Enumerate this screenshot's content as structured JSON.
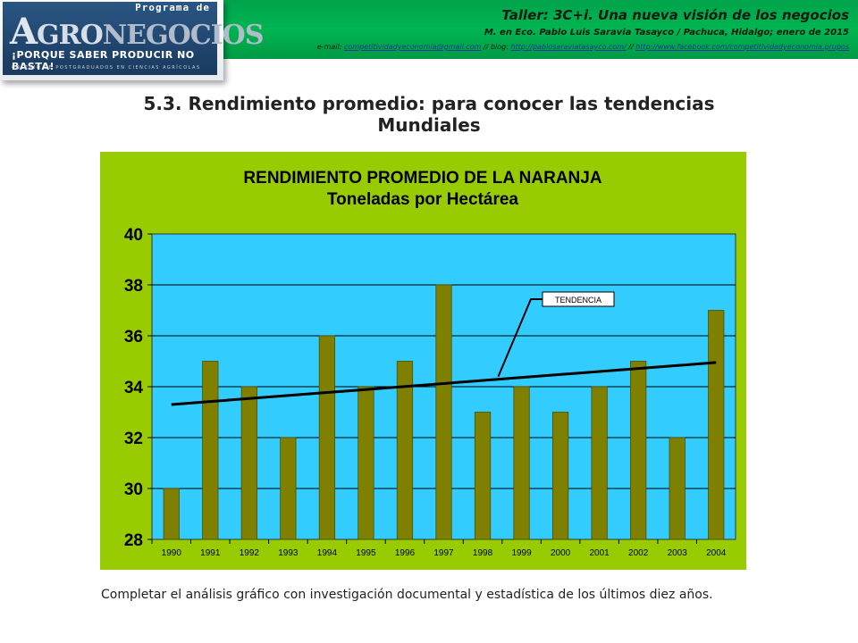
{
  "header": {
    "taller_title": "Taller: 3C+i. Una nueva visión de los negocios",
    "author_line": "M. en Eco. Pablo Luis Saravia Tasayco / Pachuca, Hidalgo; enero de 2015",
    "email_prefix": "e-mail: ",
    "email": "competitividadyeconomia@gmail.com",
    "blog_prefix": " // blog: ",
    "blog": "http://pablosaraviatasayco.com/",
    "sep": " // ",
    "facebook": "http://www.facebook.com/competitividadyeconomia.grupos"
  },
  "logo": {
    "programa": "Programa de",
    "name_a": "A",
    "name_gro": "GRO",
    "name_rest": "NEGOCIOS",
    "slogan": "¡PORQUE SABER PRODUCIR NO BASTA!",
    "college": "COLEGIO DE POSTGRADUADOS EN CIENCIAS AGRÍCOLAS"
  },
  "slide_title": {
    "line1": "5.3. Rendimiento promedio: para conocer las tendencias",
    "line2": "Mundiales"
  },
  "caption": "Completar el análisis gráfico con investigación documental y estadística de los últimos diez años.",
  "colors": {
    "header_green": "#00b050",
    "chart_area": "#99cc00",
    "plot_area": "#33ccff",
    "bar": "#808000",
    "trend": "#000000"
  },
  "chart_data": {
    "type": "bar",
    "title": "RENDIMIENTO PROMEDIO DE LA NARANJA",
    "subtitle": "Toneladas por Hectárea",
    "categories": [
      "1990",
      "1991",
      "1992",
      "1993",
      "1994",
      "1995",
      "1996",
      "1997",
      "1998",
      "1999",
      "2000",
      "2001",
      "2002",
      "2003",
      "2004"
    ],
    "values": [
      30,
      35,
      34,
      32,
      36,
      34,
      35,
      38,
      33,
      34,
      33,
      34,
      35,
      32,
      37
    ],
    "ylim": [
      28,
      40
    ],
    "yticks": [
      28,
      30,
      32,
      34,
      36,
      38,
      40
    ],
    "grid": true,
    "trendline": {
      "label": "TENDENCIA",
      "start": 33.3,
      "end": 34.95
    }
  }
}
